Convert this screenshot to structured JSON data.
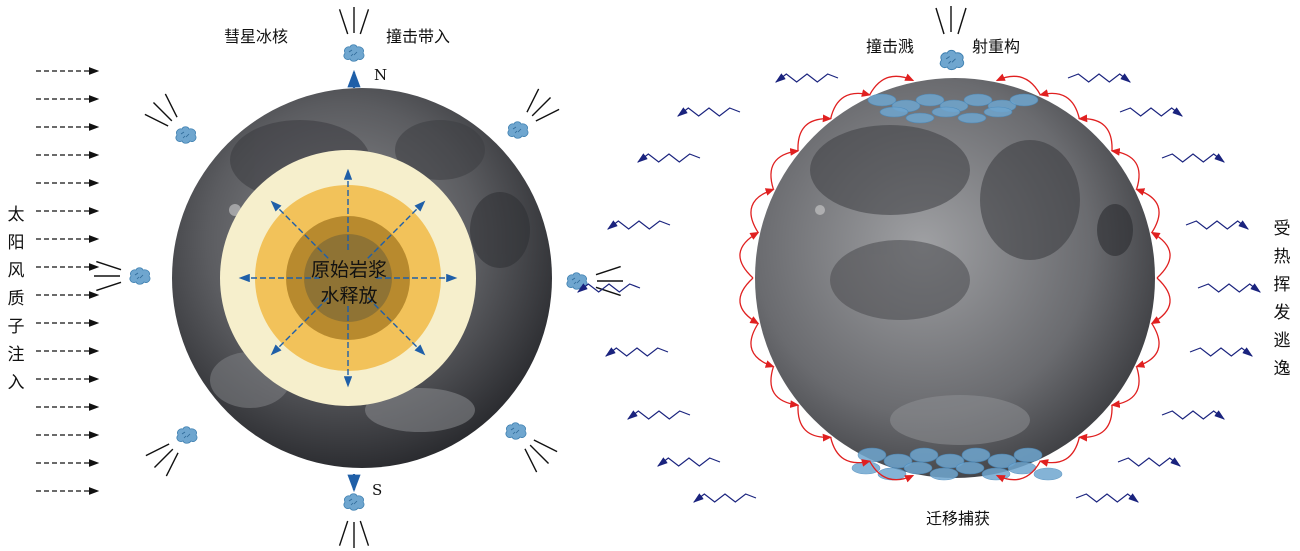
{
  "colors": {
    "moon_dark": "#1f2024",
    "moon_mid": "#6b6c70",
    "moon_light": "#b4b5b8",
    "core_outer": "#f6efcc",
    "core_ring2": "#f2c25a",
    "core_ring3": "#b88a2e",
    "core_center": "#8a6e2e",
    "water_ice": "#6fa6cf",
    "arrow_blue": "#1f5fa8",
    "loop_red": "#e02020",
    "wind_arrow": "#111111",
    "escape_navy": "#1a237e"
  },
  "icons": {
    "ice_cluster": "comet-ice-cluster-icon",
    "impact_rays": "impact-ray-lines-icon"
  },
  "left_panel": {
    "solar_wind_label": [
      "太",
      "阳",
      "风",
      "质",
      "子",
      "注",
      "入"
    ],
    "comet_label": "彗星冰核",
    "impact_label": "撞击带入",
    "north_label": "N",
    "south_label": "S",
    "core_label": [
      "原始岩浆",
      "水释放"
    ]
  },
  "right_panel": {
    "sputter_label_left": "撞击溅",
    "sputter_label_right": "射重构",
    "capture_label": "迁移捕获",
    "escape_label": [
      "受",
      "热",
      "挥",
      "发",
      "逃",
      "逸"
    ]
  }
}
